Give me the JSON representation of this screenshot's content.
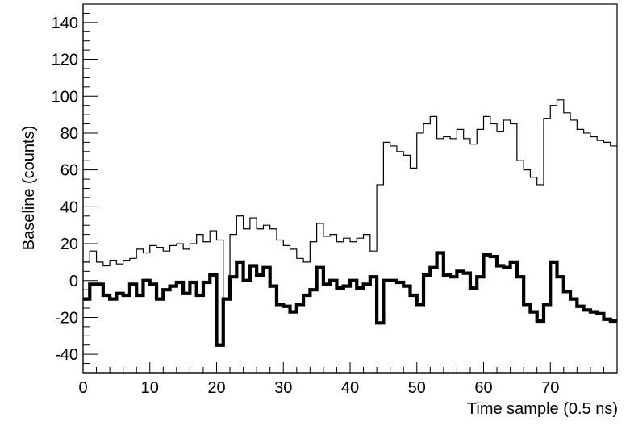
{
  "chart_data": {
    "type": "line",
    "style": "step-histogram",
    "xlabel": "Time sample (0.5 ns)",
    "ylabel": "Baseline (counts)",
    "xlim": [
      0,
      80
    ],
    "ylim": [
      -50,
      150
    ],
    "xticks": [
      0,
      10,
      20,
      30,
      40,
      50,
      60,
      70
    ],
    "yticks": [
      -40,
      -20,
      0,
      20,
      40,
      60,
      80,
      100,
      120,
      140
    ],
    "grid": false,
    "legend": "none",
    "bin_width": 1,
    "series": [
      {
        "line_style": "thin",
        "color": "#000000",
        "values": [
          10,
          16,
          10,
          8,
          11,
          9,
          11,
          12,
          17,
          15,
          19,
          18,
          16,
          19,
          20,
          17,
          20,
          25,
          21,
          27,
          22,
          -10,
          25,
          35,
          28,
          34,
          28,
          30,
          28,
          22,
          19,
          17,
          12,
          10,
          21,
          31,
          24,
          25,
          21,
          23,
          21,
          23,
          25,
          16,
          52,
          75,
          73,
          70,
          68,
          61,
          80,
          85,
          89,
          77,
          78,
          77,
          82,
          77,
          74,
          82,
          89,
          85,
          81,
          87,
          85,
          65,
          60,
          56,
          52,
          88,
          95,
          98,
          91,
          87,
          82,
          80,
          78,
          76,
          75,
          73
        ]
      },
      {
        "line_style": "thick",
        "color": "#000000",
        "values": [
          -10,
          -2,
          -2,
          -8,
          -10,
          -7,
          -8,
          -2,
          -8,
          0,
          -2,
          -10,
          -5,
          -3,
          -1,
          -7,
          -1,
          -8,
          -1,
          3,
          -35,
          -10,
          2,
          10,
          0,
          8,
          3,
          7,
          -3,
          -13,
          -14,
          -17,
          -13,
          -8,
          -5,
          7,
          -2,
          0,
          -4,
          -3,
          0,
          -4,
          -2,
          2,
          -23,
          0,
          0,
          -1,
          -3,
          -8,
          -13,
          3,
          7,
          15,
          3,
          2,
          5,
          4,
          -4,
          2,
          14,
          13,
          8,
          7,
          10,
          2,
          -13,
          -17,
          -22,
          -13,
          10,
          2,
          -6,
          -10,
          -14,
          -16,
          -17,
          -18,
          -21,
          -22
        ]
      }
    ]
  }
}
